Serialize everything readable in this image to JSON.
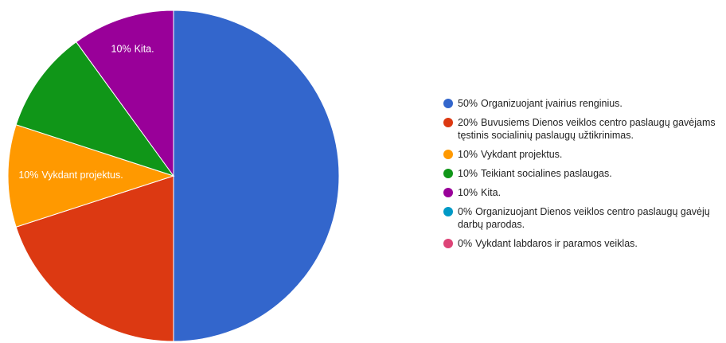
{
  "chart_data": {
    "type": "pie",
    "categories": [
      "Organizuojant įvairius renginius.",
      "Buvusiems Dienos veiklos centro paslaugų gavėjams tęstinis socialinių paslaugų užtikrinimas.",
      "Vykdant projektus.",
      "Teikiant socialines paslaugas.",
      "Kita.",
      "Organizuojant Dienos veiklos centro paslaugų gavėjų darbų parodas.",
      "Vykdant labdaros ir paramos veiklas."
    ],
    "values": [
      50,
      20,
      10,
      10,
      10,
      0,
      0
    ],
    "value_labels": [
      "50%",
      "20%",
      "10%",
      "10%",
      "10%",
      "0%",
      "0%"
    ],
    "colors": [
      "#3366cc",
      "#dc3912",
      "#ff9900",
      "#109618",
      "#990099",
      "#0099c6",
      "#dd4477"
    ],
    "legend": "right"
  }
}
